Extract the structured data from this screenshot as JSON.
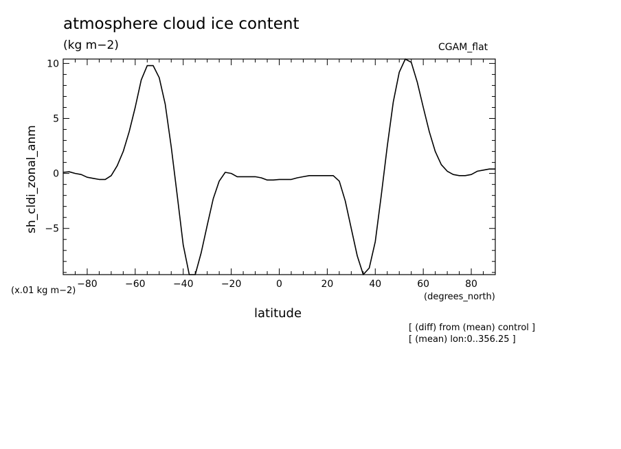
{
  "header": {
    "title": "atmosphere cloud ice content",
    "units": "(kg m−2)",
    "dataset": "CGAM_flat"
  },
  "axes": {
    "scale_note": "(x.01 kg m−2)",
    "x_units": "(degrees_north)"
  },
  "footer": {
    "note1": "[ (diff) from (mean) control ]",
    "note2": "[ (mean) lon:0..356.25 ]"
  },
  "chart_data": {
    "type": "line",
    "title": "atmosphere cloud ice content",
    "xlabel": "latitude",
    "ylabel": "sh_cldi_zonal_anm",
    "xlim": [
      -90,
      90
    ],
    "ylim": [
      -9.2,
      10.4
    ],
    "xticks": [
      -80,
      -60,
      -40,
      -20,
      0,
      20,
      40,
      60,
      80
    ],
    "xtick_labels": [
      "−80",
      "−60",
      "−40",
      "−20",
      "0",
      "20",
      "40",
      "60",
      "80"
    ],
    "yticks": [
      -5,
      0,
      5,
      10
    ],
    "ytick_labels": [
      "−5",
      "0",
      "5",
      "10"
    ],
    "grid": false,
    "line_color": "#000000",
    "series": [
      {
        "x": [
          -90,
          -87.5,
          -85,
          -82.5,
          -80,
          -77.5,
          -75,
          -72.5,
          -70,
          -67.5,
          -65,
          -62.5,
          -60,
          -57.5,
          -55,
          -52.5,
          -50,
          -47.5,
          -45,
          -42.5,
          -40,
          -37.5,
          -35,
          -32.5,
          -30,
          -27.5,
          -25,
          -22.5,
          -20,
          -17.5,
          -15,
          -12.5,
          -10,
          -7.5,
          -5,
          -2.5,
          0,
          2.5,
          5,
          7.5,
          10,
          12.5,
          15,
          17.5,
          20,
          22.5,
          25,
          27.5,
          30,
          32.5,
          35,
          37.5,
          40,
          42.5,
          45,
          47.5,
          50,
          52.5,
          55,
          57.5,
          60,
          62.5,
          65,
          67.5,
          70,
          72.5,
          75,
          77.5,
          80,
          82.5,
          85,
          87.5,
          90
        ],
        "values": [
          0.1,
          0.15,
          0.0,
          -0.1,
          -0.35,
          -0.45,
          -0.55,
          -0.55,
          -0.2,
          0.7,
          2.0,
          3.8,
          6.0,
          8.5,
          9.8,
          9.8,
          8.7,
          6.3,
          2.4,
          -2.0,
          -6.5,
          -9.2,
          -9.2,
          -7.2,
          -4.7,
          -2.3,
          -0.7,
          0.1,
          0.0,
          -0.3,
          -0.3,
          -0.3,
          -0.3,
          -0.4,
          -0.6,
          -0.6,
          -0.55,
          -0.55,
          -0.55,
          -0.4,
          -0.3,
          -0.2,
          -0.2,
          -0.2,
          -0.2,
          -0.2,
          -0.7,
          -2.5,
          -5.0,
          -7.5,
          -9.2,
          -8.6,
          -6.2,
          -2.0,
          2.5,
          6.5,
          9.2,
          10.4,
          10.1,
          8.3,
          6.0,
          3.8,
          2.0,
          0.8,
          0.2,
          -0.1,
          -0.2,
          -0.2,
          -0.1,
          0.2,
          0.3,
          0.4,
          0.4
        ]
      }
    ]
  }
}
